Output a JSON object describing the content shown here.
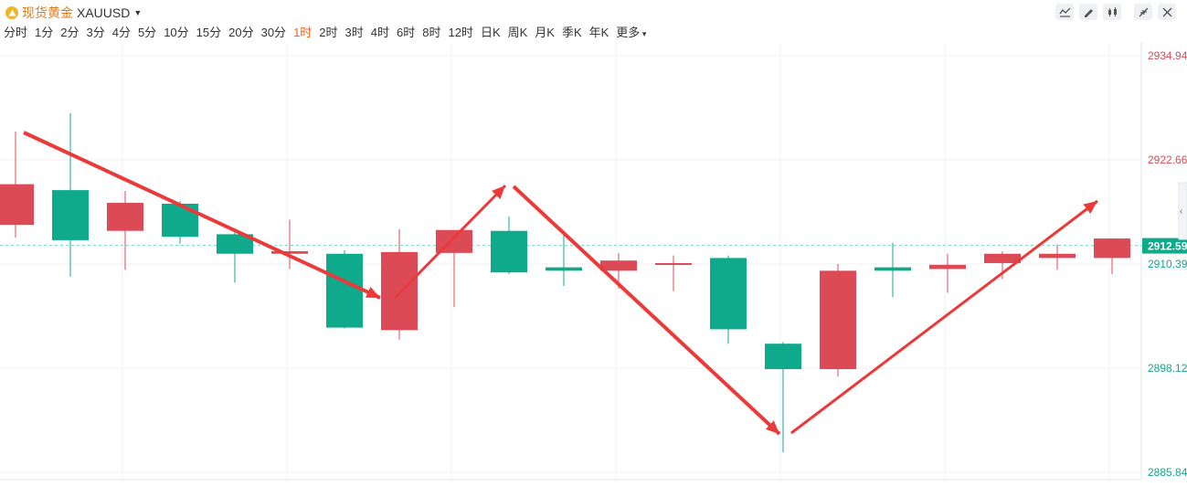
{
  "header": {
    "name": "现货黄金",
    "code": "XAUUSD",
    "periods": [
      "分时",
      "1分",
      "2分",
      "3分",
      "4分",
      "5分",
      "10分",
      "15分",
      "20分",
      "30分",
      "1时",
      "2时",
      "3时",
      "4时",
      "6时",
      "8时",
      "12时",
      "日K",
      "周K",
      "月K",
      "季K",
      "年K",
      "更多"
    ],
    "active_period": "1时"
  },
  "toolbar": [
    "indicator-icon",
    "draw-icon",
    "candle-type-icon",
    "collapse-icon",
    "close-icon"
  ],
  "colors": {
    "up": "#db4a55",
    "down": "#0fa98c",
    "accent": "#f26522",
    "arrow": "#ea3a3a",
    "grid": "#f0f2f5"
  },
  "chart_data": {
    "type": "candlestick",
    "symbol": "XAUUSD",
    "interval": "1时",
    "y_ticks": [
      2934.94,
      2922.66,
      2910.39,
      2898.12,
      2885.84
    ],
    "ylim": [
      2885.84,
      2934.94
    ],
    "last_price": 2912.59,
    "candles": [
      {
        "o": 2915.0,
        "h": 2926.0,
        "l": 2913.5,
        "c": 2919.8
      },
      {
        "o": 2919.1,
        "h": 2928.2,
        "l": 2908.9,
        "c": 2913.2
      },
      {
        "o": 2914.3,
        "h": 2919.0,
        "l": 2909.7,
        "c": 2917.6
      },
      {
        "o": 2917.5,
        "h": 2917.8,
        "l": 2912.8,
        "c": 2913.6
      },
      {
        "o": 2913.9,
        "h": 2914.6,
        "l": 2908.2,
        "c": 2911.6
      },
      {
        "o": 2911.6,
        "h": 2915.6,
        "l": 2909.8,
        "c": 2911.9
      },
      {
        "o": 2911.6,
        "h": 2912.0,
        "l": 2902.8,
        "c": 2902.9
      },
      {
        "o": 2902.6,
        "h": 2914.5,
        "l": 2901.5,
        "c": 2911.8
      },
      {
        "o": 2911.7,
        "h": 2914.4,
        "l": 2905.3,
        "c": 2914.4
      },
      {
        "o": 2914.3,
        "h": 2916.0,
        "l": 2909.2,
        "c": 2909.4
      },
      {
        "o": 2910.0,
        "h": 2914.0,
        "l": 2907.8,
        "c": 2909.6
      },
      {
        "o": 2909.6,
        "h": 2911.7,
        "l": 2907.5,
        "c": 2910.8
      },
      {
        "o": 2910.4,
        "h": 2911.4,
        "l": 2907.2,
        "c": 2910.5
      },
      {
        "o": 2911.1,
        "h": 2911.4,
        "l": 2901.0,
        "c": 2902.7
      },
      {
        "o": 2901.0,
        "h": 2901.2,
        "l": 2888.2,
        "c": 2898.0
      },
      {
        "o": 2898.0,
        "h": 2910.4,
        "l": 2897.1,
        "c": 2909.6
      },
      {
        "o": 2910.0,
        "h": 2912.9,
        "l": 2906.5,
        "c": 2909.6
      },
      {
        "o": 2909.8,
        "h": 2911.6,
        "l": 2907.0,
        "c": 2910.3
      },
      {
        "o": 2910.5,
        "h": 2911.9,
        "l": 2908.6,
        "c": 2911.6
      },
      {
        "o": 2911.1,
        "h": 2912.7,
        "l": 2909.7,
        "c": 2911.6
      },
      {
        "o": 2911.1,
        "h": 2913.4,
        "l": 2909.2,
        "c": 2913.4
      }
    ]
  }
}
